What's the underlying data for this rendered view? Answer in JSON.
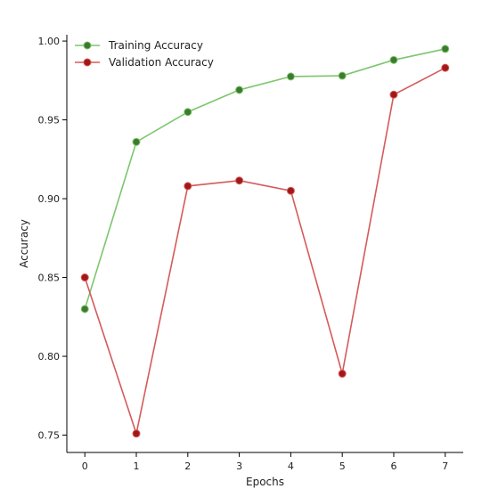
{
  "chart_data": {
    "type": "line",
    "xlabel": "Epochs",
    "ylabel": "Accuracy",
    "x": [
      0,
      1,
      2,
      3,
      4,
      5,
      6,
      7
    ],
    "xticks": [
      "0",
      "1",
      "2",
      "3",
      "4",
      "5",
      "6",
      "7"
    ],
    "yticks": [
      "0.75",
      "0.80",
      "0.85",
      "0.90",
      "0.95",
      "1.00"
    ],
    "xlim": [
      -0.35,
      7.35
    ],
    "ylim": [
      0.739,
      1.004
    ],
    "grid": false,
    "legend_position": "top-left",
    "series": [
      {
        "name": "Training Accuracy",
        "line_color": "#7cc66c",
        "marker_color": "#3d7a2e",
        "values": [
          0.83,
          0.936,
          0.955,
          0.969,
          0.9775,
          0.978,
          0.988,
          0.995
        ]
      },
      {
        "name": "Validation Accuracy",
        "line_color": "#d65a5a",
        "marker_color": "#a01818",
        "values": [
          0.85,
          0.751,
          0.908,
          0.9115,
          0.905,
          0.789,
          0.966,
          0.983
        ]
      }
    ]
  }
}
